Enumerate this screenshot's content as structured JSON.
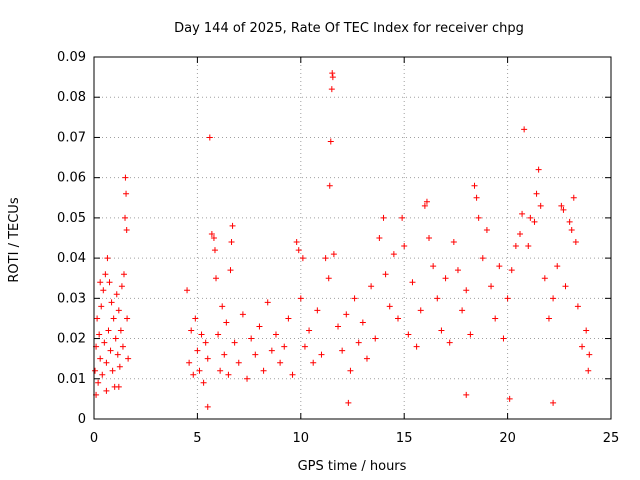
{
  "chart_data": {
    "type": "scatter",
    "title": "Day 144 of 2025, Rate Of TEC Index for receiver chpg",
    "xlabel": "GPS time / hours",
    "ylabel": "ROTI / TECUs",
    "xlim": [
      0,
      25
    ],
    "ylim": [
      0,
      0.09
    ],
    "x_ticks": [
      "0",
      "5",
      "10",
      "15",
      "20",
      "25"
    ],
    "y_ticks": [
      "0",
      "0.01",
      "0.02",
      "0.03",
      "0.04",
      "0.05",
      "0.06",
      "0.07",
      "0.08",
      "0.09"
    ],
    "grid": true,
    "marker": "+",
    "color": "#ff0000",
    "data_gap_hours": [
      1.7,
      4.4
    ],
    "series": [
      {
        "points": [
          [
            0.05,
            0.012
          ],
          [
            0.1,
            0.018
          ],
          [
            0.15,
            0.025
          ],
          [
            0.2,
            0.009
          ],
          [
            0.25,
            0.021
          ],
          [
            0.3,
            0.015
          ],
          [
            0.35,
            0.028
          ],
          [
            0.4,
            0.011
          ],
          [
            0.45,
            0.032
          ],
          [
            0.5,
            0.019
          ],
          [
            0.55,
            0.036
          ],
          [
            0.6,
            0.014
          ],
          [
            0.65,
            0.04
          ],
          [
            0.7,
            0.022
          ],
          [
            0.75,
            0.034
          ],
          [
            0.8,
            0.017
          ],
          [
            0.85,
            0.029
          ],
          [
            0.9,
            0.012
          ],
          [
            0.95,
            0.025
          ],
          [
            1.0,
            0.008
          ],
          [
            1.05,
            0.02
          ],
          [
            1.1,
            0.031
          ],
          [
            1.15,
            0.016
          ],
          [
            1.2,
            0.027
          ],
          [
            1.25,
            0.013
          ],
          [
            1.3,
            0.022
          ],
          [
            1.35,
            0.033
          ],
          [
            1.4,
            0.018
          ],
          [
            1.45,
            0.036
          ],
          [
            1.5,
            0.05
          ],
          [
            1.52,
            0.06
          ],
          [
            1.55,
            0.056
          ],
          [
            1.58,
            0.047
          ],
          [
            1.6,
            0.025
          ],
          [
            1.65,
            0.015
          ],
          [
            0.1,
            0.006
          ],
          [
            0.6,
            0.007
          ],
          [
            1.2,
            0.008
          ],
          [
            0.3,
            0.034
          ],
          [
            4.5,
            0.032
          ],
          [
            4.6,
            0.014
          ],
          [
            4.7,
            0.022
          ],
          [
            4.8,
            0.011
          ],
          [
            4.9,
            0.025
          ],
          [
            5.0,
            0.017
          ],
          [
            5.1,
            0.012
          ],
          [
            5.2,
            0.021
          ],
          [
            5.3,
            0.009
          ],
          [
            5.4,
            0.019
          ],
          [
            5.5,
            0.015
          ],
          [
            5.6,
            0.07
          ],
          [
            5.7,
            0.046
          ],
          [
            5.8,
            0.045
          ],
          [
            5.85,
            0.042
          ],
          [
            5.9,
            0.035
          ],
          [
            6.0,
            0.021
          ],
          [
            6.1,
            0.012
          ],
          [
            6.2,
            0.028
          ],
          [
            6.3,
            0.016
          ],
          [
            6.4,
            0.024
          ],
          [
            6.5,
            0.011
          ],
          [
            6.6,
            0.037
          ],
          [
            6.65,
            0.044
          ],
          [
            6.7,
            0.048
          ],
          [
            6.8,
            0.019
          ],
          [
            7.0,
            0.014
          ],
          [
            7.2,
            0.026
          ],
          [
            7.4,
            0.01
          ],
          [
            7.6,
            0.02
          ],
          [
            7.8,
            0.016
          ],
          [
            8.0,
            0.023
          ],
          [
            8.2,
            0.012
          ],
          [
            8.4,
            0.029
          ],
          [
            8.6,
            0.017
          ],
          [
            8.8,
            0.021
          ],
          [
            9.0,
            0.014
          ],
          [
            9.2,
            0.018
          ],
          [
            9.4,
            0.025
          ],
          [
            9.6,
            0.011
          ],
          [
            9.8,
            0.044
          ],
          [
            9.9,
            0.042
          ],
          [
            10.0,
            0.03
          ],
          [
            10.1,
            0.04
          ],
          [
            10.2,
            0.018
          ],
          [
            10.4,
            0.022
          ],
          [
            10.6,
            0.014
          ],
          [
            10.8,
            0.027
          ],
          [
            11.0,
            0.016
          ],
          [
            11.2,
            0.04
          ],
          [
            11.35,
            0.035
          ],
          [
            11.4,
            0.058
          ],
          [
            11.45,
            0.069
          ],
          [
            11.5,
            0.082
          ],
          [
            11.52,
            0.086
          ],
          [
            11.55,
            0.085
          ],
          [
            11.6,
            0.041
          ],
          [
            11.8,
            0.023
          ],
          [
            12.0,
            0.017
          ],
          [
            12.2,
            0.026
          ],
          [
            12.4,
            0.012
          ],
          [
            12.6,
            0.03
          ],
          [
            12.8,
            0.019
          ],
          [
            13.0,
            0.024
          ],
          [
            13.2,
            0.015
          ],
          [
            13.4,
            0.033
          ],
          [
            13.6,
            0.02
          ],
          [
            13.8,
            0.045
          ],
          [
            14.0,
            0.05
          ],
          [
            14.1,
            0.036
          ],
          [
            14.3,
            0.028
          ],
          [
            14.5,
            0.041
          ],
          [
            14.7,
            0.025
          ],
          [
            14.9,
            0.05
          ],
          [
            15.0,
            0.043
          ],
          [
            15.2,
            0.021
          ],
          [
            15.4,
            0.034
          ],
          [
            15.6,
            0.018
          ],
          [
            15.8,
            0.027
          ],
          [
            16.0,
            0.053
          ],
          [
            16.1,
            0.054
          ],
          [
            16.2,
            0.045
          ],
          [
            16.4,
            0.038
          ],
          [
            16.6,
            0.03
          ],
          [
            16.8,
            0.022
          ],
          [
            17.0,
            0.035
          ],
          [
            17.2,
            0.019
          ],
          [
            17.4,
            0.044
          ],
          [
            17.6,
            0.037
          ],
          [
            17.8,
            0.027
          ],
          [
            18.0,
            0.032
          ],
          [
            18.2,
            0.021
          ],
          [
            18.4,
            0.058
          ],
          [
            18.5,
            0.055
          ],
          [
            18.6,
            0.05
          ],
          [
            18.8,
            0.04
          ],
          [
            19.0,
            0.047
          ],
          [
            19.2,
            0.033
          ],
          [
            19.4,
            0.025
          ],
          [
            19.6,
            0.038
          ],
          [
            19.8,
            0.02
          ],
          [
            20.0,
            0.03
          ],
          [
            20.2,
            0.037
          ],
          [
            20.4,
            0.043
          ],
          [
            20.6,
            0.046
          ],
          [
            20.7,
            0.051
          ],
          [
            20.8,
            0.072
          ],
          [
            21.0,
            0.043
          ],
          [
            21.1,
            0.05
          ],
          [
            21.3,
            0.049
          ],
          [
            21.4,
            0.056
          ],
          [
            21.5,
            0.062
          ],
          [
            21.6,
            0.053
          ],
          [
            21.8,
            0.035
          ],
          [
            22.0,
            0.025
          ],
          [
            22.2,
            0.03
          ],
          [
            22.4,
            0.038
          ],
          [
            22.6,
            0.053
          ],
          [
            22.7,
            0.052
          ],
          [
            22.8,
            0.033
          ],
          [
            23.0,
            0.049
          ],
          [
            23.1,
            0.047
          ],
          [
            23.2,
            0.055
          ],
          [
            23.3,
            0.044
          ],
          [
            23.4,
            0.028
          ],
          [
            23.6,
            0.018
          ],
          [
            23.8,
            0.022
          ],
          [
            23.9,
            0.012
          ],
          [
            23.95,
            0.016
          ],
          [
            5.5,
            0.003
          ],
          [
            12.3,
            0.004
          ],
          [
            20.1,
            0.005
          ],
          [
            22.2,
            0.004
          ],
          [
            18.0,
            0.006
          ]
        ]
      }
    ]
  }
}
